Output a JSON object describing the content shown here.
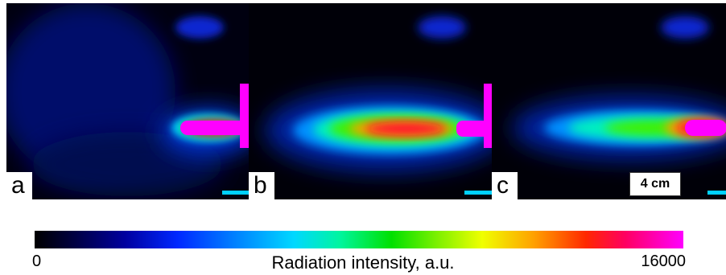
{
  "panels": [
    {
      "label": "a"
    },
    {
      "label": "b"
    },
    {
      "label": "c"
    }
  ],
  "scale_bar": {
    "label": "4 cm"
  },
  "colorbar": {
    "title": "Radiation intensity, a.u.",
    "min_label": "0",
    "max_label": "16000",
    "colormap": [
      "#000000",
      "#0000a0",
      "#0078ff",
      "#00d8ff",
      "#00e000",
      "#f0ff00",
      "#ffa000",
      "#ff2800",
      "#ff00ff"
    ]
  }
}
